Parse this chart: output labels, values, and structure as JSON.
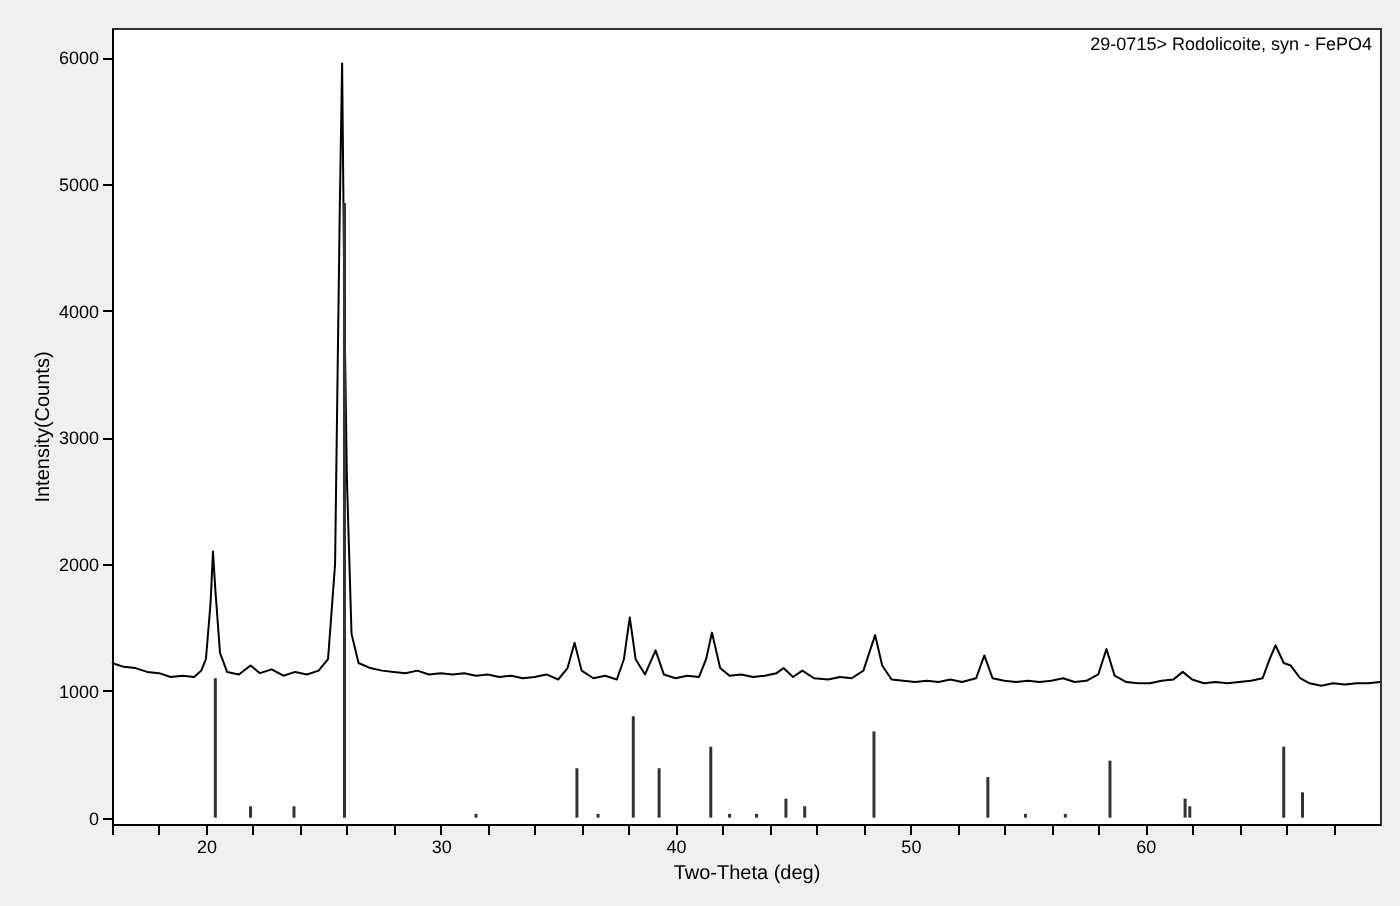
{
  "chart_data": {
    "type": "line",
    "xlabel": "Two-Theta (deg)",
    "ylabel": "Intensity(Counts)",
    "annotations": [
      "29-0715> Rodolicoite, syn - FePO4"
    ],
    "xlim": [
      16,
      70
    ],
    "ylim": [
      -50,
      6230
    ],
    "xticks": [
      {
        "value": 16,
        "label": null
      },
      {
        "value": 18,
        "label": null
      },
      20,
      {
        "value": 22,
        "label": null
      },
      {
        "value": 24,
        "label": null
      },
      {
        "value": 26,
        "label": null
      },
      {
        "value": 28,
        "label": null
      },
      30,
      {
        "value": 32,
        "label": null
      },
      {
        "value": 34,
        "label": null
      },
      {
        "value": 36,
        "label": null
      },
      {
        "value": 38,
        "label": null
      },
      40,
      {
        "value": 42,
        "label": null
      },
      {
        "value": 44,
        "label": null
      },
      {
        "value": 46,
        "label": null
      },
      {
        "value": 48,
        "label": null
      },
      50,
      {
        "value": 52,
        "label": null
      },
      {
        "value": 54,
        "label": null
      },
      {
        "value": 56,
        "label": null
      },
      {
        "value": 58,
        "label": null
      },
      60,
      {
        "value": 62,
        "label": null
      },
      {
        "value": 64,
        "label": null
      },
      {
        "value": 66,
        "label": null
      },
      {
        "value": 68,
        "label": null
      }
    ],
    "yticks": [
      0,
      1000,
      2000,
      3000,
      4000,
      5000,
      6000
    ],
    "grid": false,
    "marker": "none",
    "line_style": "solid",
    "series": [
      {
        "color": "#000000",
        "x": [
          16.0,
          16.5,
          17.0,
          17.5,
          18.0,
          18.5,
          19.0,
          19.5,
          19.8,
          20.0,
          20.2,
          20.3,
          20.4,
          20.6,
          20.9,
          21.4,
          21.9,
          22.3,
          22.8,
          23.3,
          23.8,
          24.3,
          24.8,
          25.2,
          25.5,
          25.7,
          25.8,
          25.9,
          26.0,
          26.2,
          26.5,
          27.0,
          27.5,
          28.0,
          28.5,
          29.0,
          29.5,
          30.0,
          30.5,
          31.0,
          31.5,
          32.0,
          32.5,
          33.0,
          33.5,
          34.0,
          34.5,
          35.0,
          35.4,
          35.7,
          36.0,
          36.5,
          37.0,
          37.5,
          37.8,
          38.05,
          38.3,
          38.7,
          39.15,
          39.5,
          40.0,
          40.5,
          41.0,
          41.3,
          41.55,
          41.9,
          42.3,
          42.8,
          43.3,
          43.8,
          44.3,
          44.6,
          45.0,
          45.4,
          45.9,
          46.5,
          47.0,
          47.5,
          48.0,
          48.3,
          48.5,
          48.8,
          49.2,
          49.7,
          50.2,
          50.7,
          51.2,
          51.7,
          52.2,
          52.8,
          53.15,
          53.5,
          54.0,
          54.5,
          55.0,
          55.5,
          56.0,
          56.5,
          57.0,
          57.5,
          58.0,
          58.35,
          58.7,
          59.2,
          59.7,
          60.2,
          60.7,
          61.2,
          61.6,
          62.0,
          62.5,
          63.0,
          63.5,
          64.0,
          64.5,
          65.0,
          65.3,
          65.55,
          65.9,
          66.2,
          66.6,
          67.0,
          67.5,
          68.0,
          68.5,
          69.0,
          69.5,
          70.0
        ],
        "values": [
          1220,
          1190,
          1180,
          1150,
          1140,
          1110,
          1120,
          1110,
          1160,
          1250,
          1700,
          2100,
          1800,
          1300,
          1150,
          1130,
          1200,
          1140,
          1170,
          1120,
          1150,
          1130,
          1160,
          1250,
          2000,
          4800,
          5950,
          4000,
          2700,
          1450,
          1220,
          1180,
          1160,
          1150,
          1140,
          1160,
          1130,
          1140,
          1130,
          1140,
          1120,
          1130,
          1110,
          1120,
          1100,
          1110,
          1130,
          1090,
          1180,
          1380,
          1160,
          1100,
          1120,
          1090,
          1250,
          1580,
          1250,
          1130,
          1320,
          1130,
          1100,
          1120,
          1110,
          1250,
          1460,
          1180,
          1120,
          1130,
          1110,
          1120,
          1140,
          1180,
          1110,
          1160,
          1100,
          1090,
          1110,
          1100,
          1160,
          1330,
          1440,
          1200,
          1090,
          1080,
          1070,
          1080,
          1070,
          1090,
          1070,
          1100,
          1280,
          1100,
          1080,
          1070,
          1080,
          1070,
          1080,
          1100,
          1070,
          1080,
          1130,
          1330,
          1120,
          1070,
          1060,
          1060,
          1080,
          1090,
          1150,
          1090,
          1060,
          1070,
          1060,
          1070,
          1080,
          1100,
          1250,
          1360,
          1220,
          1200,
          1100,
          1060,
          1040,
          1060,
          1050,
          1060,
          1060,
          1070
        ]
      },
      {
        "type": "bar",
        "color": "#333333",
        "x": [
          20.4,
          21.9,
          23.75,
          25.9,
          31.5,
          35.8,
          36.7,
          38.2,
          39.3,
          41.5,
          42.3,
          43.45,
          44.7,
          45.5,
          48.45,
          53.3,
          54.9,
          56.6,
          58.5,
          61.7,
          61.9,
          65.9,
          66.7
        ],
        "values": [
          1100,
          90,
          90,
          4850,
          30,
          390,
          30,
          800,
          390,
          560,
          30,
          30,
          150,
          90,
          680,
          320,
          30,
          30,
          450,
          150,
          90,
          560,
          200
        ]
      }
    ]
  }
}
